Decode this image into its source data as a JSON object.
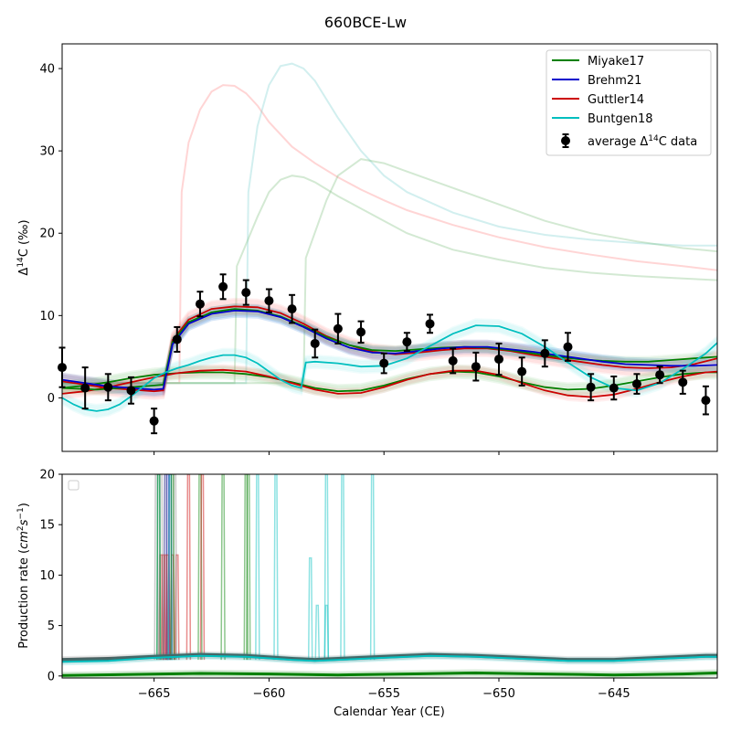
{
  "figure": {
    "title": "660BCE-Lw",
    "xlabel": "Calendar Year (CE)"
  },
  "chart_data": [
    {
      "type": "line",
      "panel": "top",
      "ylabel": "Δ14C (‰)",
      "xlim": [
        -669,
        -640.5
      ],
      "ylim": [
        -6.5,
        43
      ],
      "xticks": [
        -665,
        -660,
        -655,
        -650,
        -645
      ],
      "xtick_labels": [
        "−665",
        "−660",
        "−655",
        "−650",
        "−645"
      ],
      "yticks": [
        0,
        10,
        20,
        30,
        40
      ],
      "legend_placement": "upper right",
      "legend": [
        {
          "label": "Miyake17",
          "color": "#008000",
          "kind": "line"
        },
        {
          "label": "Brehm21",
          "color": "#0000cc",
          "kind": "line"
        },
        {
          "label": "Guttler14",
          "color": "#cc0000",
          "kind": "line"
        },
        {
          "label": "Buntgen18",
          "color": "#00bfbf",
          "kind": "line"
        },
        {
          "label_prefix": "average Δ",
          "label_sup": "14",
          "label_suffix": "C data",
          "color": "#000000",
          "kind": "errorbar"
        }
      ],
      "data_points": {
        "name": "average Δ14C data",
        "x": [
          -669,
          -668,
          -667,
          -666,
          -665,
          -664,
          -663,
          -662,
          -661,
          -660,
          -659,
          -658,
          -657,
          -656,
          -655,
          -654,
          -653,
          -652,
          -651,
          -650,
          -649,
          -648,
          -647,
          -646,
          -645,
          -644,
          -643,
          -642,
          -641
        ],
        "y": [
          3.7,
          1.2,
          1.3,
          0.9,
          -2.8,
          7.1,
          11.4,
          13.5,
          12.8,
          11.8,
          10.8,
          6.6,
          8.4,
          8.0,
          4.2,
          6.8,
          9.0,
          4.5,
          3.8,
          4.7,
          3.2,
          5.4,
          6.2,
          1.3,
          1.2,
          1.7,
          2.8,
          1.9,
          -0.3
        ],
        "yerr": [
          2.4,
          2.5,
          1.6,
          1.6,
          1.5,
          1.5,
          1.5,
          1.5,
          1.5,
          1.4,
          1.7,
          1.7,
          1.8,
          1.3,
          1.2,
          1.1,
          1.1,
          1.5,
          1.7,
          1.9,
          1.7,
          1.6,
          1.7,
          1.6,
          1.4,
          1.2,
          1.0,
          1.4,
          1.7
        ]
      },
      "series": [
        {
          "name": "Brehm21",
          "color": "#0000cc",
          "x": [
            -669,
            -667,
            -666,
            -665,
            -664.6,
            -664.2,
            -663.5,
            -662.5,
            -661.5,
            -660.5,
            -659.5,
            -658.5,
            -657.5,
            -656.5,
            -655.5,
            -654.5,
            -653.5,
            -652.5,
            -651.5,
            -650.5,
            -649.5,
            -648.5,
            -647.5,
            -646.5,
            -645.5,
            -644.5,
            -643.5,
            -642.5,
            -641.5,
            -640.5
          ],
          "y": [
            2.2,
            1.4,
            1.2,
            1.0,
            1.1,
            6.5,
            9.0,
            10.2,
            10.6,
            10.5,
            9.8,
            8.6,
            7.2,
            6.1,
            5.5,
            5.4,
            5.7,
            6.0,
            6.2,
            6.2,
            5.9,
            5.6,
            5.2,
            4.8,
            4.4,
            4.1,
            4.0,
            3.9,
            3.9,
            4.0
          ]
        },
        {
          "name": "Guttler14",
          "color": "#cc0000",
          "x": [
            -669,
            -667,
            -666,
            -665,
            -664.6,
            -664.2,
            -663.5,
            -662.5,
            -661.5,
            -660.5,
            -659.5,
            -658.5,
            -657.5,
            -656.5,
            -655.5,
            -654.5,
            -653.5,
            -652.5,
            -651.5,
            -650.5,
            -649.5,
            -648.5,
            -647.5,
            -646.5,
            -645.5,
            -644.5,
            -643.5,
            -642.5,
            -641.5,
            -640.5
          ],
          "y": [
            2.0,
            1.2,
            1.0,
            0.8,
            0.9,
            7.0,
            9.5,
            10.8,
            11.1,
            11.0,
            10.3,
            9.0,
            7.5,
            6.4,
            5.6,
            5.3,
            5.5,
            5.8,
            6.0,
            6.0,
            5.7,
            5.2,
            4.8,
            4.4,
            4.0,
            3.7,
            3.6,
            3.7,
            4.1,
            4.8
          ]
        },
        {
          "name": "Miyake17",
          "color": "#008000",
          "x": [
            -669,
            -667.5,
            -666,
            -665,
            -664.6,
            -664.2,
            -663.5,
            -662.5,
            -661.5,
            -660.5,
            -659.5,
            -658.5,
            -657.5,
            -656.5,
            -655.5,
            -654.5,
            -653.5,
            -652.5,
            -651.5,
            -650.5,
            -649.5,
            -648.5,
            -647.5,
            -646.5,
            -645.5,
            -644.5,
            -643.5,
            -642.5,
            -641.5,
            -640.5
          ],
          "y": [
            1.2,
            1.0,
            1.3,
            1.5,
            1.6,
            6.8,
            9.2,
            10.4,
            10.8,
            10.6,
            9.9,
            8.7,
            7.4,
            6.4,
            5.8,
            5.7,
            5.9,
            6.1,
            6.2,
            6.1,
            5.8,
            5.4,
            5.0,
            4.7,
            4.5,
            4.4,
            4.4,
            4.6,
            4.8,
            5.0
          ]
        },
        {
          "name": "Buntgen18",
          "color": "#00bfbf",
          "x": [
            -669,
            -668.5,
            -668,
            -667.5,
            -667,
            -666.5,
            -666,
            -665.5,
            -665,
            -664.5,
            -664,
            -663.5,
            -663,
            -662.5,
            -662,
            -661.5,
            -661,
            -660.5,
            -660,
            -659.5,
            -659,
            -658.6,
            -658.4,
            -658,
            -657,
            -656,
            -655,
            -654,
            -653,
            -652,
            -651,
            -650,
            -649,
            -648,
            -647,
            -646,
            -645,
            -644,
            -643,
            -642,
            -641,
            -640.5
          ],
          "y": [
            0.0,
            -0.8,
            -1.4,
            -1.6,
            -1.4,
            -0.8,
            0.2,
            1.3,
            2.4,
            3.1,
            3.6,
            4.0,
            4.5,
            4.9,
            5.2,
            5.2,
            4.9,
            4.2,
            3.2,
            2.2,
            1.5,
            1.2,
            4.3,
            4.4,
            4.2,
            3.8,
            3.9,
            4.8,
            6.3,
            7.8,
            8.8,
            8.7,
            7.8,
            6.2,
            4.3,
            2.5,
            1.2,
            0.9,
            1.8,
            3.5,
            5.4,
            6.7
          ]
        },
        {
          "name": "lower green ensemble",
          "color": "#008000",
          "x": [
            -669,
            -668,
            -667,
            -666,
            -665,
            -664,
            -663,
            -662,
            -661,
            -660,
            -659,
            -658,
            -657,
            -656,
            -655,
            -654,
            -653,
            -652,
            -651,
            -650,
            -649,
            -648,
            -647,
            -646,
            -645,
            -644,
            -643,
            -642,
            -641,
            -640.5
          ],
          "y": [
            1.2,
            1.5,
            1.9,
            2.4,
            2.8,
            3.0,
            3.1,
            3.1,
            2.9,
            2.5,
            1.9,
            1.2,
            0.8,
            0.9,
            1.5,
            2.3,
            2.9,
            3.2,
            3.1,
            2.6,
            1.9,
            1.3,
            1.0,
            1.1,
            1.5,
            2.0,
            2.5,
            2.9,
            3.1,
            3.1
          ]
        },
        {
          "name": "lower red ensemble",
          "color": "#cc0000",
          "x": [
            -669,
            -668,
            -667,
            -666,
            -665,
            -664,
            -663,
            -662,
            -661,
            -660,
            -659,
            -658,
            -657,
            -656,
            -655,
            -654,
            -653,
            -652,
            -651,
            -650,
            -649,
            -648,
            -647,
            -646,
            -645,
            -644,
            -643,
            -642,
            -641,
            -640.5
          ],
          "y": [
            0.5,
            0.8,
            1.3,
            1.9,
            2.5,
            3.0,
            3.3,
            3.4,
            3.2,
            2.6,
            1.8,
            1.0,
            0.5,
            0.6,
            1.3,
            2.2,
            2.9,
            3.3,
            3.3,
            2.8,
            1.8,
            0.9,
            0.3,
            0.1,
            0.4,
            1.1,
            1.9,
            2.6,
            3.1,
            3.2
          ]
        }
      ],
      "faded_spikes": [
        {
          "color": "#ff8888",
          "x": [
            -669,
            -664.8,
            -663.9,
            -663.8,
            -663.5,
            -663,
            -662.5,
            -662,
            -661.5,
            -661,
            -660.5,
            -660,
            -659,
            -658,
            -657,
            -656,
            -655,
            -654,
            -652,
            -650,
            -648,
            -646,
            -644,
            -642,
            -640.5
          ],
          "y": [
            1.8,
            1.8,
            1.8,
            25.0,
            31.0,
            35.0,
            37.2,
            38.0,
            37.9,
            37.0,
            35.5,
            33.5,
            30.5,
            28.5,
            26.8,
            25.3,
            24.0,
            22.8,
            21.0,
            19.5,
            18.3,
            17.4,
            16.6,
            16.0,
            15.5
          ]
        },
        {
          "color": "#7fd0d0",
          "x": [
            -669,
            -661,
            -660.9,
            -660.5,
            -660,
            -659.5,
            -659,
            -658.5,
            -658,
            -657,
            -656,
            -655,
            -654,
            -652,
            -650,
            -648,
            -646,
            -644,
            -642,
            -640.5
          ],
          "y": [
            1.8,
            1.8,
            25.0,
            33.0,
            38.0,
            40.3,
            40.6,
            40.0,
            38.5,
            34.0,
            30.0,
            27.0,
            25.0,
            22.5,
            20.8,
            19.8,
            19.2,
            18.8,
            18.5,
            18.5
          ]
        },
        {
          "color": "#80c080",
          "x": [
            -669,
            -661.5,
            -661.4,
            -660.5,
            -660,
            -659.5,
            -659,
            -658.5,
            -658,
            -657,
            -656,
            -655,
            -654,
            -652,
            -650,
            -648,
            -646,
            -644,
            -642,
            -640.5
          ],
          "y": [
            1.8,
            1.8,
            16.0,
            22.0,
            25.0,
            26.5,
            27.0,
            26.8,
            26.2,
            24.5,
            23.0,
            21.5,
            20.0,
            18.0,
            16.8,
            15.8,
            15.2,
            14.8,
            14.5,
            14.3
          ]
        },
        {
          "color": "#80c080",
          "x": [
            -669,
            -658.5,
            -658.4,
            -657.5,
            -657,
            -656,
            -655,
            -654,
            -652,
            -650,
            -648,
            -646,
            -644,
            -642,
            -640.5
          ],
          "y": [
            1.8,
            1.8,
            17.0,
            24.0,
            27.0,
            29.0,
            28.5,
            27.5,
            25.5,
            23.5,
            21.5,
            20.0,
            19.0,
            18.2,
            17.8
          ]
        }
      ]
    },
    {
      "type": "line",
      "panel": "bottom",
      "ylabel": "Production rate (cm2s-1)",
      "xlim": [
        -669,
        -640.5
      ],
      "ylim": [
        -0.2,
        20
      ],
      "yticks": [
        0,
        5,
        10,
        15,
        20
      ],
      "legend_placement": "upper left",
      "legend": [],
      "series": [
        {
          "name": "baseline grey",
          "color": "#555555",
          "x": [
            -669,
            -667,
            -665,
            -663,
            -661,
            -659,
            -658,
            -657,
            -655,
            -653,
            -651,
            -649,
            -647,
            -645,
            -643,
            -641,
            -640.5
          ],
          "y": [
            1.6,
            1.7,
            1.9,
            2.1,
            2.0,
            1.7,
            1.6,
            1.7,
            1.9,
            2.1,
            2.0,
            1.8,
            1.6,
            1.6,
            1.8,
            2.0,
            2.0
          ]
        },
        {
          "name": "Miyake17",
          "color": "#008000",
          "x": [
            -669,
            -666,
            -663,
            -660,
            -657,
            -654,
            -651,
            -648,
            -645,
            -642,
            -640.5
          ],
          "y": [
            0.05,
            0.15,
            0.25,
            0.2,
            0.1,
            0.2,
            0.3,
            0.2,
            0.1,
            0.2,
            0.3
          ]
        },
        {
          "name": "Buntgen18",
          "color": "#00bfbf",
          "x": [
            -669,
            -667,
            -665,
            -663,
            -661,
            -659,
            -658,
            -657,
            -655,
            -653,
            -651,
            -649,
            -647,
            -645,
            -643,
            -641,
            -640.5
          ],
          "y": [
            1.4,
            1.5,
            1.8,
            2.0,
            1.9,
            1.6,
            1.5,
            1.6,
            1.8,
            2.0,
            1.9,
            1.7,
            1.5,
            1.5,
            1.7,
            1.9,
            1.9
          ]
        }
      ],
      "spikes": [
        {
          "color": "#0000cc",
          "x": [
            -664.5,
            -664.4,
            -664.3
          ],
          "peak": 20
        },
        {
          "color": "#cc0000",
          "x": [
            -664.7,
            -664.6,
            -664.5,
            -664.4,
            -664.2,
            -664.0
          ],
          "peak": 12
        },
        {
          "color": "#888888",
          "x": [
            -664.9,
            -664.7,
            -664.5,
            -664.3,
            -664.1
          ],
          "peak": 20
        },
        {
          "color": "#00bfbf",
          "x": [
            -664.8,
            -664.3,
            -660.5,
            -659.7,
            -657.5,
            -656.8,
            -655.5
          ],
          "peak": 20
        },
        {
          "color": "#008000",
          "x": [
            -664.8,
            -664.2,
            -663.0,
            -662.0,
            -661.0,
            -660.9
          ],
          "peak": 20
        },
        {
          "color": "#cc0000",
          "x": [
            -663.5,
            -662.9
          ],
          "peak": 20
        },
        {
          "color": "#00bfbf",
          "x": [
            -658.2
          ],
          "peak": 11.7
        },
        {
          "color": "#00bfbf",
          "x": [
            -657.9,
            -657.5
          ],
          "peak": 7.0
        }
      ]
    }
  ]
}
